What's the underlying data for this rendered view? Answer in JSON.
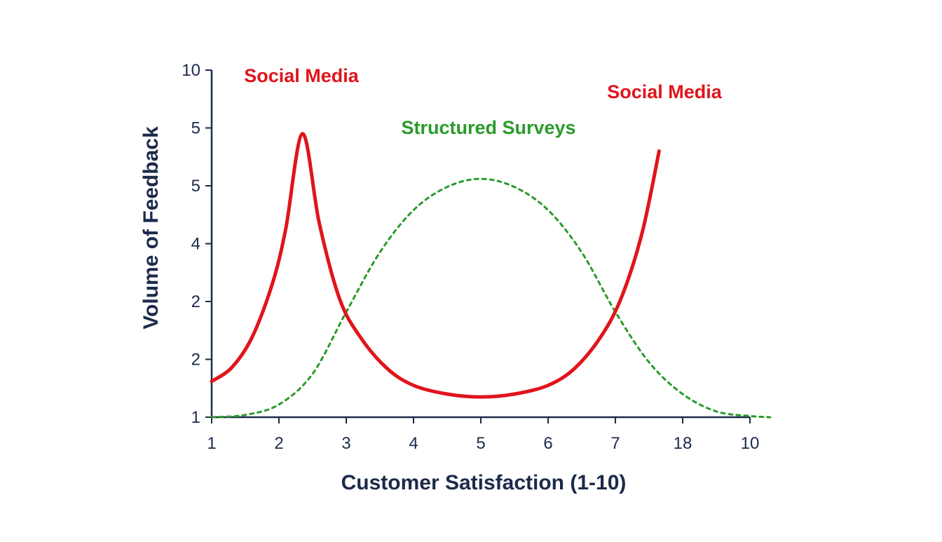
{
  "chart_data": {
    "type": "line",
    "xlabel": "Customer Satisfaction (1-10)",
    "ylabel": "Volume of Feedback",
    "x_ticks": [
      "1",
      "2",
      "3",
      "4",
      "5",
      "6",
      "7",
      "18",
      "10"
    ],
    "y_ticks": [
      "1",
      "2",
      "2",
      "4",
      "5",
      "5",
      "10"
    ],
    "series": [
      {
        "name": "Social Media",
        "color": "#e0141b",
        "style": "solid",
        "x": [
          1,
          1.3,
          1.6,
          1.9,
          2.1,
          2.35,
          2.6,
          2.9,
          3.2,
          3.6,
          4.0,
          4.5,
          5.0,
          5.5,
          6.0,
          6.4,
          6.8,
          7.1,
          7.4,
          7.65
        ],
        "y": [
          1.62,
          1.86,
          2.38,
          3.3,
          4.25,
          5.9,
          4.35,
          3.05,
          2.4,
          1.85,
          1.55,
          1.4,
          1.35,
          1.4,
          1.55,
          1.85,
          2.42,
          3.1,
          4.2,
          5.6
        ]
      },
      {
        "name": "Structured Surveys",
        "color": "#2a9a2a",
        "style": "dotted",
        "x": [
          1,
          1.5,
          2,
          2.5,
          3,
          3.5,
          4,
          4.5,
          5,
          5.5,
          6,
          6.5,
          7,
          7.5,
          8,
          8.5,
          9,
          9.3
        ],
        "y": [
          1.0,
          1.04,
          1.22,
          1.75,
          2.82,
          3.85,
          4.58,
          4.98,
          5.12,
          4.98,
          4.58,
          3.85,
          2.82,
          1.95,
          1.4,
          1.1,
          1.02,
          1.0
        ]
      }
    ],
    "annotations": [
      {
        "text": "Social Media",
        "color": "#e0141b"
      },
      {
        "text": "Social Media",
        "color": "#e0141b"
      },
      {
        "text": "Structured Surveys",
        "color": "#2a9a2a"
      }
    ],
    "grid": false,
    "legend": "none"
  }
}
